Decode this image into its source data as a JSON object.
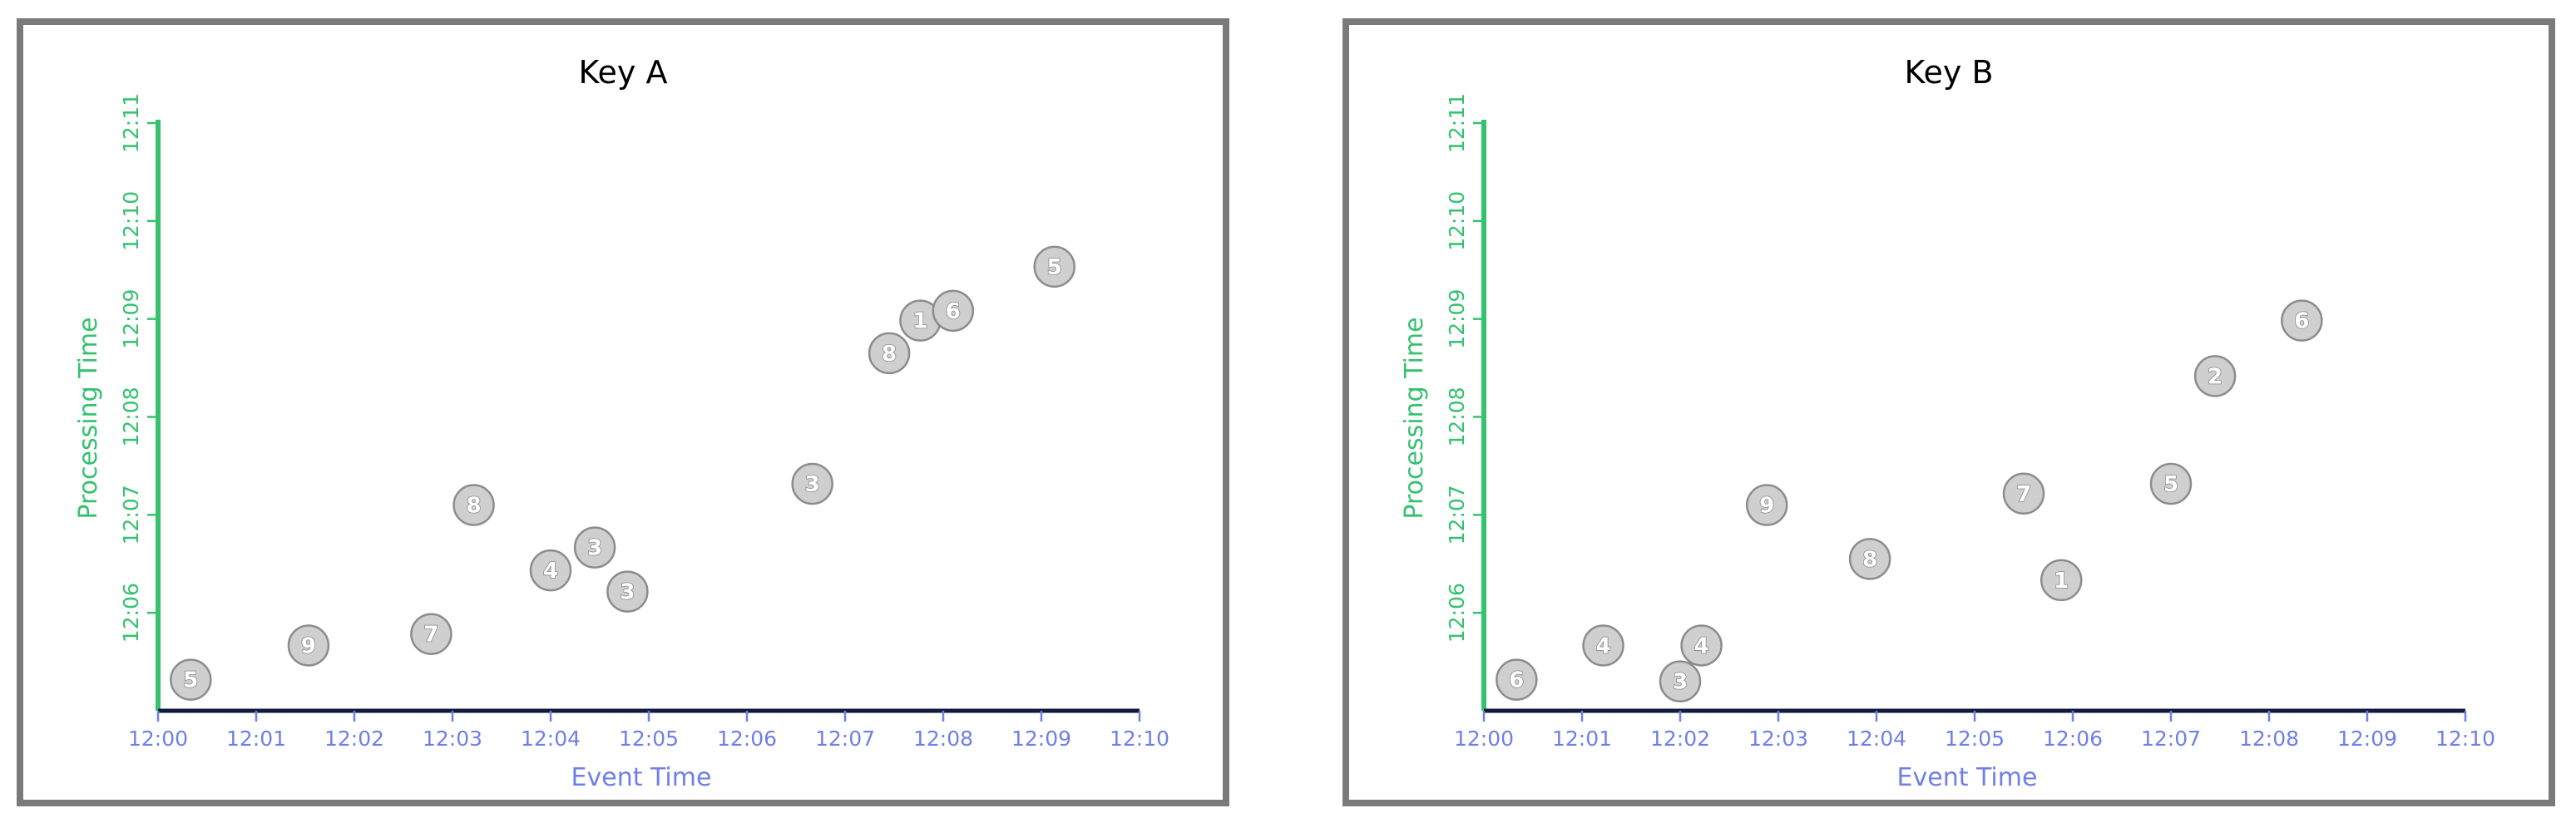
{
  "chart_data": [
    {
      "type": "scatter",
      "title": "Key A",
      "xlabel": "Event Time",
      "ylabel": "Processing Time",
      "xticks": [
        "12:00",
        "12:01",
        "12:02",
        "12:03",
        "12:04",
        "12:05",
        "12:06",
        "12:07",
        "12:08",
        "12:09",
        "12:10"
      ],
      "yticks": [
        "12:06",
        "12:07",
        "12:08",
        "12:09",
        "12:10",
        "12:11"
      ],
      "xlim": [
        "12:00",
        "12:10"
      ],
      "ylim": [
        "12:05",
        "12:11"
      ],
      "grid": false,
      "points": [
        {
          "x": "12:00:20",
          "y": "12:05:19",
          "label": "5"
        },
        {
          "x": "12:01:32",
          "y": "12:05:40",
          "label": "9"
        },
        {
          "x": "12:02:47",
          "y": "12:05:47",
          "label": "7"
        },
        {
          "x": "12:03:13",
          "y": "12:07:06",
          "label": "8"
        },
        {
          "x": "12:04:00",
          "y": "12:06:26",
          "label": "4"
        },
        {
          "x": "12:04:27",
          "y": "12:06:40",
          "label": "3"
        },
        {
          "x": "12:04:47",
          "y": "12:06:13",
          "label": "3"
        },
        {
          "x": "12:06:40",
          "y": "12:07:19",
          "label": "3"
        },
        {
          "x": "12:07:27",
          "y": "12:08:39",
          "label": "8"
        },
        {
          "x": "12:07:46",
          "y": "12:08:59",
          "label": "1"
        },
        {
          "x": "12:08:06",
          "y": "12:09:05",
          "label": "6"
        },
        {
          "x": "12:09:08",
          "y": "12:09:32",
          "label": "5"
        }
      ]
    },
    {
      "type": "scatter",
      "title": "Key B",
      "xlabel": "Event Time",
      "ylabel": "Processing Time",
      "xticks": [
        "12:00",
        "12:01",
        "12:02",
        "12:03",
        "12:04",
        "12:05",
        "12:06",
        "12:07",
        "12:08",
        "12:09",
        "12:10"
      ],
      "yticks": [
        "12:06",
        "12:07",
        "12:08",
        "12:09",
        "12:10",
        "12:11"
      ],
      "xlim": [
        "12:00",
        "12:10"
      ],
      "ylim": [
        "12:05",
        "12:11"
      ],
      "grid": false,
      "points": [
        {
          "x": "12:00:20",
          "y": "12:05:19",
          "label": "6"
        },
        {
          "x": "12:01:13",
          "y": "12:05:40",
          "label": "4"
        },
        {
          "x": "12:02:00",
          "y": "12:05:18",
          "label": "3"
        },
        {
          "x": "12:02:13",
          "y": "12:05:40",
          "label": "4"
        },
        {
          "x": "12:02:53",
          "y": "12:07:06",
          "label": "9"
        },
        {
          "x": "12:03:56",
          "y": "12:06:33",
          "label": "8"
        },
        {
          "x": "12:05:30",
          "y": "12:07:13",
          "label": "7"
        },
        {
          "x": "12:05:53",
          "y": "12:06:20",
          "label": "1"
        },
        {
          "x": "12:07:00",
          "y": "12:07:19",
          "label": "5"
        },
        {
          "x": "12:07:27",
          "y": "12:08:25",
          "label": "2"
        },
        {
          "x": "12:08:20",
          "y": "12:08:59",
          "label": "6"
        }
      ]
    }
  ]
}
